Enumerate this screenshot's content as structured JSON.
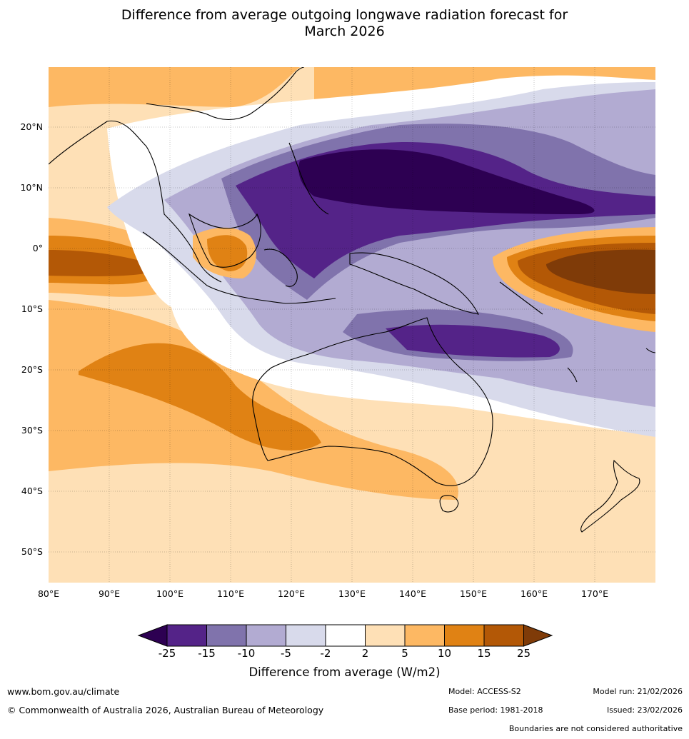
{
  "title_line1": "Difference from average outgoing longwave radiation forecast for",
  "title_line2": "March 2026",
  "lat_labels": [
    "20°N",
    "10°N",
    "0°",
    "10°S",
    "20°S",
    "30°S",
    "40°S",
    "50°S"
  ],
  "lon_labels": [
    "80°E",
    "90°E",
    "100°E",
    "110°E",
    "120°E",
    "130°E",
    "140°E",
    "150°E",
    "160°E",
    "170°E"
  ],
  "colorbar": {
    "ticks": [
      "-25",
      "-15",
      "-10",
      "-5",
      "-2",
      "2",
      "5",
      "10",
      "15",
      "25"
    ],
    "colors": {
      "below_min": "#2d0052",
      "c1": "#542388",
      "c2": "#8073ac",
      "c3": "#b2abd2",
      "c4": "#d8daeb",
      "c5": "#ffffff",
      "c6": "#fee0b6",
      "c7": "#fdb863",
      "c8": "#e08214",
      "c9": "#b35806",
      "above_max": "#7f3b08"
    },
    "label": "Difference from average (W/m2)"
  },
  "footer": {
    "website": "www.bom.gov.au/climate",
    "copyright": "© Commonwealth of Australia 2026, Australian Bureau of Meteorology",
    "model": "Model: ACCESS-S2",
    "base_period": "Base period: 1981-2018",
    "model_run": "Model run: 21/02/2026",
    "issued": "Issued: 23/02/2026",
    "disclaimer": "Boundaries are not considered authoritative"
  }
}
